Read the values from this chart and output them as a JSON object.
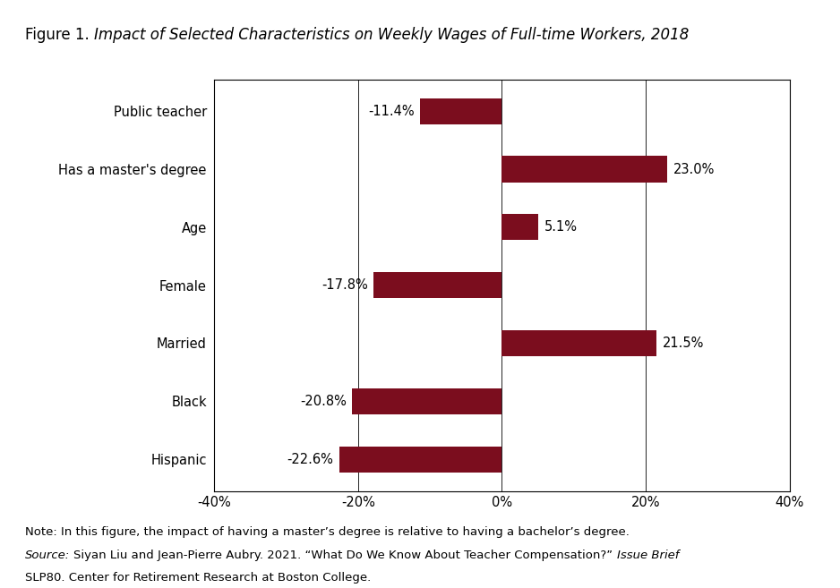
{
  "categories": [
    "Public teacher",
    "Has a master's degree",
    "Age",
    "Female",
    "Married",
    "Black",
    "Hispanic"
  ],
  "values": [
    -11.4,
    23.0,
    5.1,
    -17.8,
    21.5,
    -20.8,
    -22.6
  ],
  "labels": [
    "-11.4%",
    "23.0%",
    "5.1%",
    "-17.8%",
    "21.5%",
    "-20.8%",
    "-22.6%"
  ],
  "bar_color": "#7b0d1e",
  "xlim": [
    -40,
    40
  ],
  "xticks": [
    -40,
    -20,
    0,
    20,
    40
  ],
  "xticklabels": [
    "-40%",
    "-20%",
    "0%",
    "20%",
    "40%"
  ],
  "note_line1": "Note: In this figure, the impact of having a master’s degree is relative to having a bachelor’s degree.",
  "note_line3": "SLP80. Center for Retirement Research at Boston College.",
  "background_color": "#ffffff",
  "label_fontsize": 10.5,
  "tick_fontsize": 10.5,
  "title_fontsize": 12,
  "note_fontsize": 9.5,
  "bar_height": 0.45
}
